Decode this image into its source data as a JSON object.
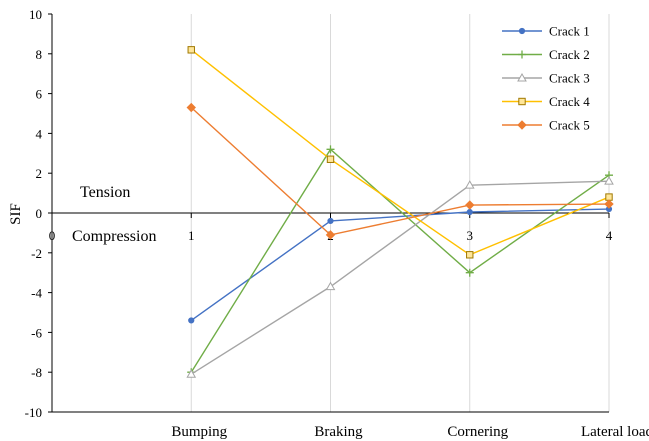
{
  "chart_data": {
    "type": "line",
    "title": "",
    "xlabel": "",
    "ylabel": "SIF",
    "ylim": [
      -10,
      10
    ],
    "y_ticks": [
      -10,
      -8,
      -6,
      -4,
      -2,
      0,
      2,
      4,
      6,
      8,
      10
    ],
    "xlim": [
      0,
      4
    ],
    "x_ticks": [
      0,
      1,
      2,
      3,
      4
    ],
    "x": [
      1,
      2,
      3,
      4
    ],
    "categories": [
      "Bumping",
      "Braking",
      "Cornering",
      "Lateral load"
    ],
    "grid": "vertical",
    "legend_position": "top-right",
    "annotations": [
      "Tension",
      "Compression"
    ],
    "series": [
      {
        "name": "Crack 1",
        "color": "#4472C4",
        "marker": "circle",
        "values": [
          -5.4,
          -0.4,
          0.05,
          0.2
        ]
      },
      {
        "name": "Crack 2",
        "color": "#70AD47",
        "marker": "plus",
        "values": [
          -8.0,
          3.2,
          -3.0,
          1.9
        ]
      },
      {
        "name": "Crack 3",
        "color": "#A5A5A5",
        "marker": "triangle",
        "values": [
          -8.1,
          -3.7,
          1.4,
          1.6
        ]
      },
      {
        "name": "Crack 4",
        "color": "#FFC000",
        "marker": "square",
        "values": [
          8.2,
          2.7,
          -2.1,
          0.8
        ]
      },
      {
        "name": "Crack 5",
        "color": "#ED7D31",
        "marker": "diamond",
        "values": [
          5.3,
          -1.1,
          0.4,
          0.45
        ]
      }
    ]
  }
}
